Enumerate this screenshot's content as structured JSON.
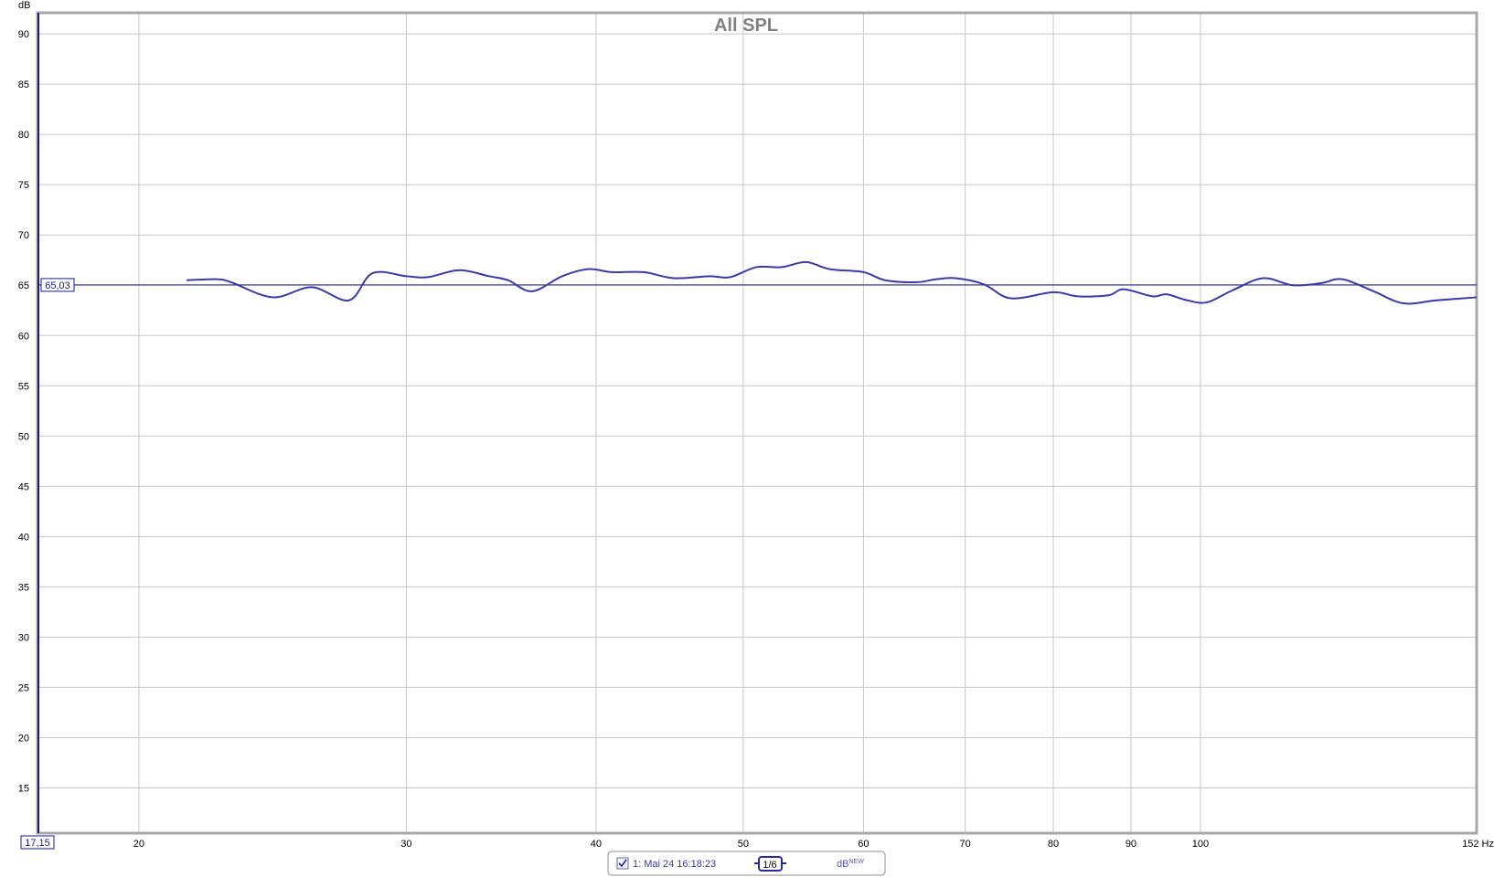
{
  "chart_data": {
    "type": "line",
    "title": "All SPL",
    "ylabel": "dB",
    "xlabel_unit": "Hz",
    "x_scale": "log",
    "xlim": [
      17.15,
      152
    ],
    "ylim": [
      10.5,
      92.1
    ],
    "grid": true,
    "x_ticks": [
      20,
      30,
      40,
      50,
      60,
      70,
      80,
      90,
      100
    ],
    "x_end_label": "152 Hz",
    "y_ticks": [
      15,
      20,
      25,
      30,
      35,
      40,
      45,
      50,
      55,
      60,
      65,
      70,
      75,
      80,
      85,
      90
    ],
    "x_cursor_label": "17,15",
    "x_cursor_value": 17.15,
    "y_cursor_label": "65,03",
    "y_cursor_value": 65.03,
    "series": [
      {
        "color": "#3a3aa8",
        "x": [
          21.5,
          22.5,
          23,
          24.5,
          26,
          27.5,
          28.5,
          30,
          31,
          32.5,
          34,
          35,
          36.3,
          38,
          39.5,
          41,
          43,
          45,
          47.5,
          49,
          51,
          53,
          55,
          57,
          60,
          62,
          65,
          67,
          69,
          72,
          75,
          80,
          83,
          87,
          89,
          93,
          95,
          98,
          101,
          105,
          110,
          115,
          120,
          124,
          130,
          136,
          143,
          152
        ],
        "y": [
          65.5,
          65.6,
          65.3,
          63.8,
          64.8,
          63.5,
          66.2,
          65.9,
          65.8,
          66.5,
          65.9,
          65.5,
          64.4,
          65.9,
          66.6,
          66.3,
          66.3,
          65.7,
          65.9,
          65.8,
          66.8,
          66.8,
          67.3,
          66.6,
          66.3,
          65.5,
          65.3,
          65.6,
          65.7,
          65.1,
          63.7,
          64.3,
          63.9,
          64.0,
          64.6,
          63.9,
          64.1,
          63.5,
          63.3,
          64.5,
          65.7,
          65.0,
          65.2,
          65.6,
          64.4,
          63.2,
          63.5,
          63.8
        ]
      }
    ]
  },
  "legend": {
    "checked": true,
    "entry_label": "1: Mai 24 16:18:23",
    "smoothing_label": "1/6",
    "unit_label": "dB",
    "unit_superscript": "NEW"
  },
  "colors": {
    "trace": "#3a3aa8",
    "cursor": "#1a1a8c",
    "grid": "#c8c8c8",
    "frame": "#a0a0a0"
  }
}
